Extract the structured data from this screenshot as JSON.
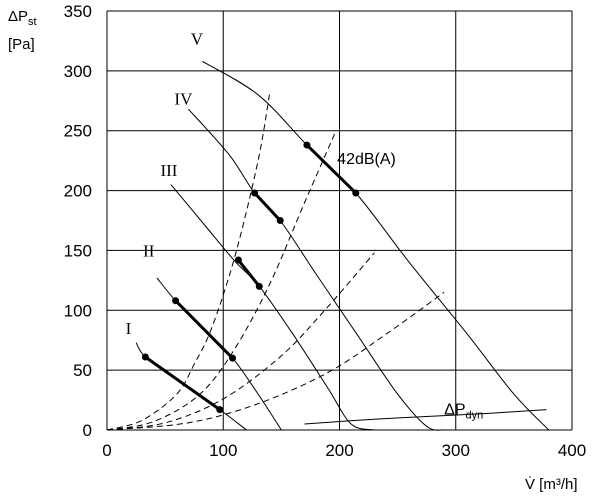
{
  "chart_data": {
    "type": "line",
    "xlabel": "V̇ [m³/h]",
    "ylabel_main": "ΔP",
    "ylabel_sub": "st",
    "ylabel_unit": "[Pa]",
    "xlim": [
      0,
      400
    ],
    "ylim": [
      0,
      350
    ],
    "x_ticks": [
      0,
      100,
      200,
      300,
      400
    ],
    "y_ticks": [
      0,
      50,
      100,
      150,
      200,
      250,
      300,
      350
    ],
    "grid": true,
    "fan_curves": [
      {
        "name": "I",
        "label_at": [
          16,
          80
        ],
        "points": [
          [
            25,
            73
          ],
          [
            33,
            61
          ],
          [
            60,
            42
          ],
          [
            97,
            17
          ],
          [
            120,
            0
          ]
        ]
      },
      {
        "name": "II",
        "label_at": [
          31,
          145
        ],
        "points": [
          [
            43,
            127
          ],
          [
            59,
            108
          ],
          [
            85,
            82
          ],
          [
            108,
            60
          ],
          [
            130,
            30
          ],
          [
            150,
            0
          ]
        ]
      },
      {
        "name": "III",
        "label_at": [
          46,
          212
        ],
        "points": [
          [
            55,
            205
          ],
          [
            85,
            170
          ],
          [
            110,
            141
          ],
          [
            131,
            120
          ],
          [
            160,
            80
          ],
          [
            190,
            35
          ],
          [
            210,
            5
          ],
          [
            230,
            0
          ]
        ]
      },
      {
        "name": "IV",
        "label_at": [
          58,
          272
        ],
        "points": [
          [
            70,
            268
          ],
          [
            105,
            230
          ],
          [
            127,
            198
          ],
          [
            149,
            175
          ],
          [
            180,
            130
          ],
          [
            215,
            80
          ],
          [
            250,
            30
          ],
          [
            275,
            3
          ],
          [
            290,
            0
          ]
        ]
      },
      {
        "name": "V",
        "label_at": [
          72,
          322
        ],
        "points": [
          [
            82,
            308
          ],
          [
            130,
            280
          ],
          [
            172,
            238
          ],
          [
            214,
            198
          ],
          [
            260,
            140
          ],
          [
            310,
            80
          ],
          [
            350,
            30
          ],
          [
            380,
            0
          ]
        ]
      }
    ],
    "system_curves": [
      {
        "points": [
          [
            0,
            0
          ],
          [
            30,
            8
          ],
          [
            60,
            30
          ],
          [
            75,
            55
          ],
          [
            90,
            85
          ],
          [
            110,
            145
          ],
          [
            130,
            225
          ],
          [
            140,
            282
          ]
        ]
      },
      {
        "points": [
          [
            0,
            0
          ],
          [
            40,
            7
          ],
          [
            80,
            30
          ],
          [
            110,
            68
          ],
          [
            140,
            122
          ],
          [
            170,
            190
          ],
          [
            197,
            250
          ]
        ]
      },
      {
        "points": [
          [
            0,
            0
          ],
          [
            50,
            6
          ],
          [
            100,
            26
          ],
          [
            150,
            62
          ],
          [
            190,
            103
          ],
          [
            230,
            148
          ]
        ]
      },
      {
        "points": [
          [
            0,
            0
          ],
          [
            70,
            6
          ],
          [
            130,
            22
          ],
          [
            190,
            48
          ],
          [
            240,
            80
          ],
          [
            290,
            115
          ]
        ]
      }
    ],
    "dynamic_pressure_curve": {
      "label_main": "ΔP",
      "label_sub": "dyn",
      "label_at": [
        290,
        13
      ],
      "points": [
        [
          170,
          5
        ],
        [
          230,
          9
        ],
        [
          290,
          12
        ],
        [
          330,
          14
        ],
        [
          378,
          17
        ]
      ]
    },
    "operating_segments": [
      {
        "curve": "I",
        "points": [
          [
            33,
            61
          ],
          [
            97,
            17
          ]
        ]
      },
      {
        "curve": "II",
        "points": [
          [
            59,
            108
          ],
          [
            108,
            60
          ]
        ]
      },
      {
        "curve": "III",
        "points": [
          [
            113,
            142
          ],
          [
            131,
            120
          ]
        ]
      },
      {
        "curve": "IV",
        "points": [
          [
            127,
            198
          ],
          [
            149,
            175
          ]
        ]
      },
      {
        "curve": "V",
        "points": [
          [
            172,
            238
          ],
          [
            214,
            198
          ]
        ]
      }
    ],
    "annotation": {
      "text": "42dB(A)",
      "at": [
        198,
        222
      ]
    }
  }
}
